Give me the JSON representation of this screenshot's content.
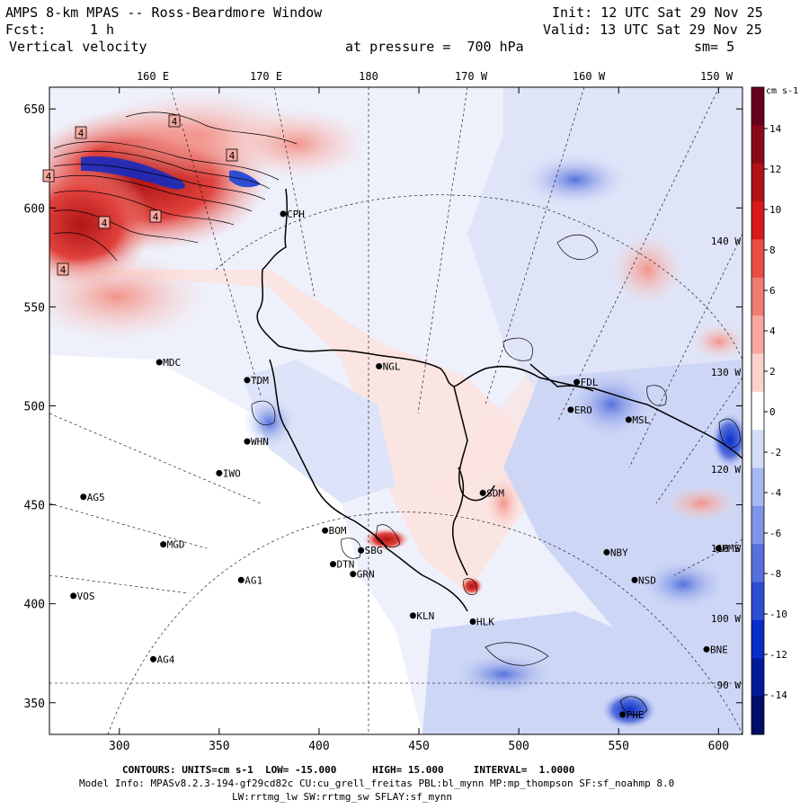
{
  "header": {
    "title": "AMPS 8-km MPAS -- Ross-Beardmore Window",
    "fcst_label": "Fcst:",
    "fcst_value": "1 h",
    "field": "Vertical velocity",
    "init": "Init: 12 UTC Sat 29 Nov 25",
    "valid": "Valid: 13 UTC Sat 29 Nov 25",
    "level": "at pressure =  700 hPa",
    "smooth": "sm= 5"
  },
  "map": {
    "top_lon_labels": [
      "160 E",
      "170 E",
      "180",
      "170 W",
      "160 W",
      "150 W"
    ],
    "right_lon_labels": [
      "140 W",
      "130 W",
      "120 W",
      "110 W",
      "100 W",
      "90 W"
    ],
    "x_axis": {
      "ticks": [
        300,
        350,
        400,
        450,
        500,
        550,
        600
      ],
      "range": [
        265,
        612
      ]
    },
    "y_axis": {
      "ticks": [
        650,
        600,
        550,
        500,
        450,
        400,
        350
      ],
      "range": [
        334,
        661
      ]
    },
    "contour_labels": [
      "4",
      "4",
      "4",
      "4",
      "4",
      "4",
      "4"
    ],
    "stations": [
      {
        "name": "CPH",
        "x": 382,
        "y": 597
      },
      {
        "name": "NGL",
        "x": 430,
        "y": 520
      },
      {
        "name": "MDC",
        "x": 320,
        "y": 522
      },
      {
        "name": "TDM",
        "x": 364,
        "y": 513
      },
      {
        "name": "WHN",
        "x": 364,
        "y": 482
      },
      {
        "name": "IWO",
        "x": 350,
        "y": 466
      },
      {
        "name": "AG5",
        "x": 282,
        "y": 454
      },
      {
        "name": "SDM",
        "x": 482,
        "y": 456
      },
      {
        "name": "BOM",
        "x": 403,
        "y": 437
      },
      {
        "name": "MGD",
        "x": 322,
        "y": 430
      },
      {
        "name": "SBG",
        "x": 421,
        "y": 427
      },
      {
        "name": "DTN",
        "x": 407,
        "y": 420
      },
      {
        "name": "GRN",
        "x": 417,
        "y": 415
      },
      {
        "name": "AG1",
        "x": 361,
        "y": 412
      },
      {
        "name": "VOS",
        "x": 277,
        "y": 404
      },
      {
        "name": "KLN",
        "x": 447,
        "y": 394
      },
      {
        "name": "HLK",
        "x": 477,
        "y": 391
      },
      {
        "name": "AG4",
        "x": 317,
        "y": 372
      },
      {
        "name": "FDL",
        "x": 529,
        "y": 512
      },
      {
        "name": "ERO",
        "x": 526,
        "y": 498
      },
      {
        "name": "MSL",
        "x": 555,
        "y": 493
      },
      {
        "name": "NBY",
        "x": 544,
        "y": 426
      },
      {
        "name": "NSD",
        "x": 558,
        "y": 412
      },
      {
        "name": "MMS",
        "x": 600,
        "y": 428
      },
      {
        "name": "BNE",
        "x": 594,
        "y": 377
      },
      {
        "name": "PHE",
        "x": 552,
        "y": 344
      }
    ]
  },
  "colorbar": {
    "unit": "cm s-1",
    "tick_labels": [
      "14",
      "12",
      "10",
      "8",
      "6",
      "4",
      "2",
      "0",
      "-2",
      "-4",
      "-6",
      "-8",
      "-10",
      "-12",
      "-14"
    ],
    "colors": [
      "#67001f",
      "#8b0a1a",
      "#b11316",
      "#d7191c",
      "#ea4d46",
      "#f07c72",
      "#f6a89f",
      "#fbd2cc",
      "#ffffff",
      "#d4dcf7",
      "#a9b8ef",
      "#7f95e6",
      "#5671dc",
      "#2d4ed3",
      "#0a2cc9",
      "#001a99",
      "#000d66"
    ]
  },
  "footer": {
    "contours": "CONTOURS: UNITS=cm s-1  LOW= -15.000      HIGH= 15.000     INTERVAL=  1.0000",
    "model_info": "Model Info: MPASv8.2.3-194-gf29cd82c CU:cu_grell_freitas PBL:bl_mynn MP:mp_thompson SF:sf_noahmp 8.0",
    "schemes": "LW:rrtmg_lw SW:rrtmg_sw SFLAY:sf_mynn"
  }
}
